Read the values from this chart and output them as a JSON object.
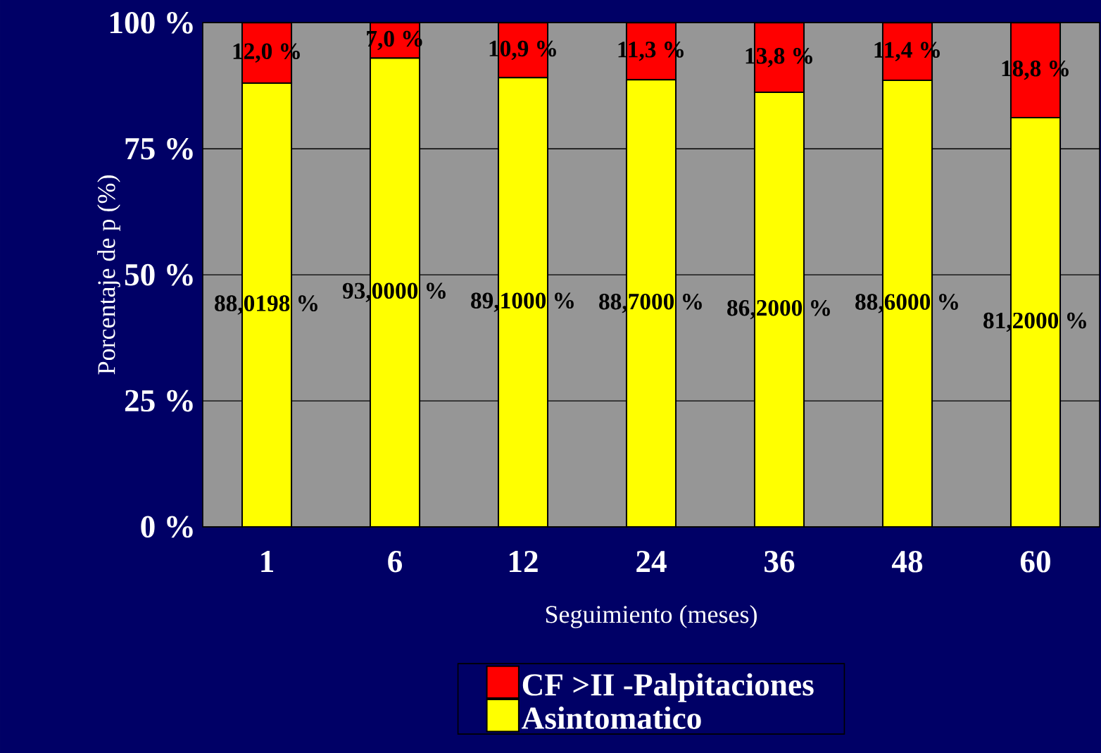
{
  "chart_data": {
    "type": "bar",
    "stacked": true,
    "xlabel": "Seguimiento (meses)",
    "ylabel": "Porcentaje de p (%)",
    "categories": [
      "1",
      "6",
      "12",
      "24",
      "36",
      "48",
      "60"
    ],
    "series": [
      {
        "name": "Asintomatico",
        "color": "#ffff00",
        "values": [
          88.0198,
          93.0,
          89.1,
          88.7,
          86.2,
          88.6,
          81.2
        ],
        "value_labels": [
          "88,0198 %",
          "93,0000 %",
          "89,1000 %",
          "88,7000 %",
          "86,2000 %",
          "88,6000 %",
          "81,2000 %"
        ]
      },
      {
        "name": "CF >II -Palpitaciones",
        "color": "#ff0000",
        "values": [
          12.0,
          7.0,
          10.9,
          11.3,
          13.8,
          11.4,
          18.8
        ],
        "value_labels": [
          "12,0 %",
          "7,0 %",
          "10,9 %",
          "11,3 %",
          "13,8 %",
          "11,4 %",
          "18,8 %"
        ]
      }
    ],
    "ylim": [
      0,
      100.05
    ],
    "yticks": [
      {
        "value": 0,
        "label": "0 %"
      },
      {
        "value": 25,
        "label": "25 %"
      },
      {
        "value": 50,
        "label": "50 %"
      },
      {
        "value": 75,
        "label": "75 %"
      },
      {
        "value": 100,
        "label": "100 %"
      }
    ],
    "grid": "y",
    "legend": "bottom"
  }
}
